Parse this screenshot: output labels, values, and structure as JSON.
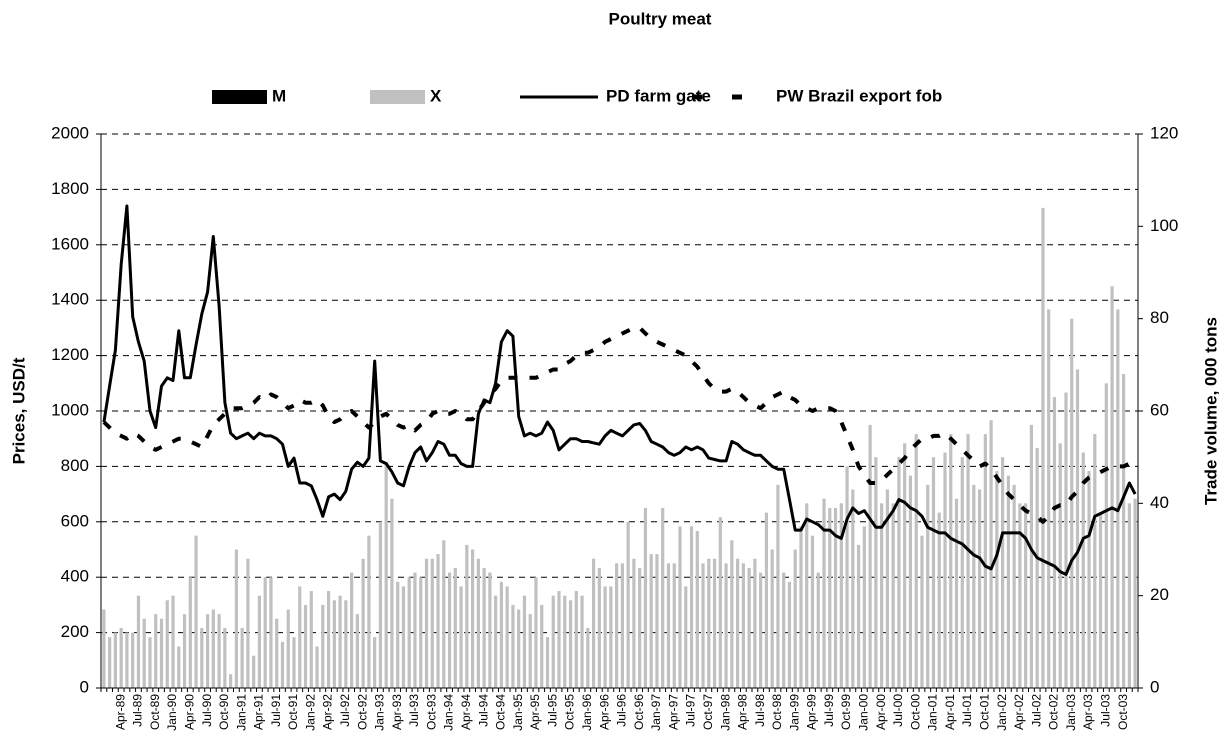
{
  "chart_data": {
    "type": "bar_line",
    "title": "Poultry meat",
    "y_label": "Prices, USD/t",
    "y2_label": "Trade volume, 000 tons",
    "categories": [
      null,
      null,
      null,
      "Apr-89",
      null,
      null,
      "Jul-89",
      null,
      null,
      "Oct-89",
      null,
      null,
      "Jan-90",
      null,
      null,
      "Apr-90",
      null,
      null,
      "Jul-90",
      null,
      null,
      "Oct-90",
      null,
      null,
      "Jan-91",
      null,
      null,
      "Apr-91",
      null,
      null,
      "Jul-91",
      null,
      null,
      "Oct-91",
      null,
      null,
      "Jan-92",
      null,
      null,
      "Apr-92",
      null,
      null,
      "Jul-92",
      null,
      null,
      "Oct-92",
      null,
      null,
      "Jan-93",
      null,
      null,
      "Apr-93",
      null,
      null,
      "Jul-93",
      null,
      null,
      "Oct-93",
      null,
      null,
      "Jan-94",
      null,
      null,
      "Apr-94",
      null,
      null,
      "Jul-94",
      null,
      null,
      "Oct-94",
      null,
      null,
      "Jan-95",
      null,
      null,
      "Apr-95",
      null,
      null,
      "Jul-95",
      null,
      null,
      "Oct-95",
      null,
      null,
      "Jan-96",
      null,
      null,
      "Apr-96",
      null,
      null,
      "Jul-96",
      null,
      null,
      "Oct-96",
      null,
      null,
      "Jan-97",
      null,
      null,
      "Apr-97",
      null,
      null,
      "Jul-97",
      null,
      null,
      "Oct-97",
      null,
      null,
      "Jan-98",
      null,
      null,
      "Apr-98",
      null,
      null,
      "Jul-98",
      null,
      null,
      "Oct-98",
      null,
      null,
      "Jan-99",
      null,
      null,
      "Apr-99",
      null,
      null,
      "Jul-99",
      null,
      null,
      "Oct-99",
      null,
      null,
      "Jan-00",
      null,
      null,
      "Apr-00",
      null,
      null,
      "Jul-00",
      null,
      null,
      "Oct-00",
      null,
      null,
      "Jan-01",
      null,
      null,
      "Apr-01",
      null,
      null,
      "Jul-01",
      null,
      null,
      "Oct-01",
      null,
      null,
      "Jan-02",
      null,
      null,
      "Apr-02",
      null,
      null,
      "Jul-02",
      null,
      null,
      "Oct-02",
      null,
      null,
      "Jan-03",
      null,
      null,
      "Apr-03",
      null,
      null,
      "Jul-03",
      null,
      null,
      "Oct-03",
      null,
      null
    ],
    "series": [
      {
        "name": "M",
        "kind": "bar",
        "axis": "y2",
        "color": "#000000",
        "values": [
          0,
          0,
          0,
          0,
          0,
          0,
          0,
          0,
          0,
          0,
          0,
          0,
          0,
          0,
          0,
          0,
          0,
          0,
          0,
          0,
          0,
          0,
          0,
          0,
          0,
          0,
          0,
          0,
          0,
          0,
          0,
          0,
          0,
          0,
          0,
          0,
          0,
          0,
          0,
          0,
          0,
          0,
          0,
          0,
          0,
          0,
          0,
          0,
          0,
          0,
          0,
          0,
          0,
          0,
          0,
          0,
          0,
          0,
          0,
          0,
          0,
          0,
          0,
          0,
          0,
          0,
          0,
          0,
          0,
          0,
          0,
          0,
          0,
          0,
          0,
          0,
          0,
          0,
          0,
          0,
          0,
          0,
          0,
          0,
          0,
          0,
          0,
          0,
          0,
          0,
          0,
          0,
          0,
          0,
          0,
          0,
          0,
          0,
          0,
          0,
          0,
          0,
          0,
          0,
          0,
          0,
          0,
          0,
          0,
          0,
          0,
          0,
          0,
          0,
          0,
          0,
          0,
          0,
          0,
          0,
          0,
          0,
          0,
          0,
          0,
          0,
          0,
          0,
          0,
          0,
          0,
          0,
          0,
          0,
          0,
          0,
          0,
          0,
          0,
          0,
          0,
          0,
          0,
          0,
          0,
          0,
          0,
          0,
          0,
          0,
          0,
          0,
          0,
          0,
          0,
          0,
          0,
          0,
          0,
          0,
          0,
          0,
          0,
          0,
          0,
          0,
          0,
          0,
          0,
          0,
          0,
          0,
          0,
          0,
          0,
          0,
          0,
          0,
          0,
          0
        ]
      },
      {
        "name": "X",
        "kind": "bar",
        "axis": "y2",
        "color": "#c0c0c0",
        "values": [
          17,
          11,
          12,
          13,
          12,
          12,
          20,
          15,
          11,
          16,
          15,
          19,
          20,
          9,
          16,
          24,
          33,
          13,
          16,
          17,
          16,
          13,
          3,
          30,
          13,
          28,
          7,
          20,
          24,
          24,
          15,
          10,
          17,
          11,
          22,
          18,
          21,
          9,
          18,
          21,
          19,
          20,
          19,
          25,
          16,
          28,
          33,
          11,
          36,
          49,
          41,
          23,
          22,
          24,
          25,
          24,
          28,
          28,
          29,
          32,
          25,
          26,
          22,
          31,
          30,
          28,
          26,
          25,
          20,
          23,
          22,
          18,
          17,
          20,
          16,
          24,
          18,
          11,
          20,
          21,
          20,
          19,
          21,
          20,
          13,
          28,
          26,
          22,
          22,
          27,
          27,
          36,
          28,
          26,
          39,
          29,
          29,
          39,
          27,
          27,
          35,
          22,
          35,
          34,
          27,
          28,
          28,
          37,
          27,
          32,
          28,
          27,
          26,
          28,
          25,
          38,
          30,
          44,
          25,
          23,
          30,
          35,
          40,
          33,
          25,
          41,
          39,
          39,
          40,
          48,
          43,
          31,
          35,
          57,
          50,
          40,
          43,
          40,
          50,
          53,
          46,
          55,
          33,
          44,
          50,
          38,
          51,
          55,
          41,
          50,
          55,
          44,
          43,
          55,
          58,
          47,
          50,
          46,
          44,
          40,
          40,
          57,
          52,
          104,
          82,
          63,
          53,
          64,
          80,
          69,
          51,
          47,
          55,
          38,
          66,
          87,
          82,
          68,
          40,
          41
        ]
      },
      {
        "name": "PD farm gate",
        "kind": "line",
        "style": "solid",
        "color": "#000000",
        "values": [
          960,
          1090,
          1220,
          1530,
          1740,
          1340,
          1250,
          1180,
          1000,
          940,
          1090,
          1120,
          1110,
          1290,
          1120,
          1120,
          1240,
          1350,
          1430,
          1630,
          1380,
          1030,
          920,
          900,
          910,
          920,
          900,
          920,
          910,
          910,
          900,
          880,
          800,
          830,
          740,
          740,
          730,
          680,
          620,
          690,
          700,
          680,
          710,
          790,
          815,
          800,
          830,
          1180,
          820,
          810,
          780,
          740,
          730,
          800,
          850,
          870,
          820,
          850,
          890,
          880,
          840,
          840,
          810,
          800,
          800,
          990,
          1040,
          1030,
          1100,
          1250,
          1290,
          1270,
          980,
          910,
          920,
          910,
          920,
          960,
          930,
          860,
          880,
          900,
          900,
          890,
          890,
          885,
          880,
          910,
          930,
          920,
          910,
          930,
          950,
          955,
          930,
          890,
          880,
          870,
          850,
          840,
          850,
          870,
          860,
          870,
          860,
          830,
          825,
          820,
          820,
          890,
          880,
          860,
          850,
          840,
          840,
          820,
          800,
          790,
          790,
          680,
          570,
          570,
          610,
          600,
          590,
          570,
          570,
          550,
          540,
          610,
          650,
          630,
          640,
          610,
          580,
          580,
          610,
          640,
          680,
          670,
          650,
          640,
          620,
          580,
          570,
          560,
          560,
          540,
          530,
          520,
          500,
          480,
          470,
          440,
          430,
          480,
          560,
          560,
          560,
          560,
          540,
          500,
          470,
          460,
          450,
          440,
          420,
          410,
          460,
          490,
          540,
          550,
          620,
          630,
          640,
          650,
          640,
          690,
          740,
          700
        ]
      },
      {
        "name": "PW Brazil export fob",
        "kind": "line",
        "style": "dashed",
        "color": "#000000",
        "values": [
          960,
          940,
          920,
          910,
          900,
          920,
          910,
          890,
          870,
          860,
          870,
          880,
          890,
          900,
          900,
          890,
          880,
          870,
          910,
          950,
          970,
          990,
          1010,
          1010,
          1010,
          1020,
          1030,
          1050,
          1040,
          1060,
          1050,
          1030,
          1010,
          1020,
          1040,
          1030,
          1030,
          1040,
          1020,
          980,
          960,
          970,
          990,
          1000,
          980,
          960,
          940,
          960,
          980,
          990,
          970,
          950,
          940,
          950,
          930,
          950,
          960,
          990,
          1000,
          990,
          990,
          1000,
          990,
          970,
          970,
          1000,
          1030,
          1060,
          1080,
          1110,
          1120,
          1120,
          1120,
          1120,
          1120,
          1120,
          1130,
          1140,
          1150,
          1150,
          1170,
          1180,
          1200,
          1210,
          1210,
          1220,
          1230,
          1250,
          1260,
          1270,
          1280,
          1290,
          1300,
          1300,
          1280,
          1260,
          1250,
          1240,
          1230,
          1220,
          1210,
          1200,
          1180,
          1160,
          1130,
          1100,
          1080,
          1070,
          1070,
          1080,
          1070,
          1050,
          1030,
          1020,
          1010,
          1030,
          1050,
          1060,
          1070,
          1050,
          1040,
          1020,
          1010,
          1000,
          1010,
          1010,
          1010,
          1000,
          960,
          910,
          860,
          800,
          770,
          740,
          740,
          750,
          770,
          790,
          810,
          830,
          860,
          880,
          900,
          900,
          910,
          910,
          920,
          900,
          880,
          860,
          840,
          820,
          800,
          810,
          790,
          760,
          730,
          700,
          680,
          660,
          640,
          630,
          620,
          600,
          620,
          650,
          660,
          660,
          690,
          710,
          740,
          760,
          770,
          780,
          790,
          800,
          800,
          800,
          810,
          830
        ]
      }
    ],
    "ylim": [
      0,
      2000
    ],
    "yticks": [
      0,
      200,
      400,
      600,
      800,
      1000,
      1200,
      1400,
      1600,
      1800,
      2000
    ],
    "y2lim": [
      0,
      120
    ],
    "y2ticks": [
      0,
      20,
      40,
      60,
      80,
      100,
      120
    ],
    "grid": true
  }
}
